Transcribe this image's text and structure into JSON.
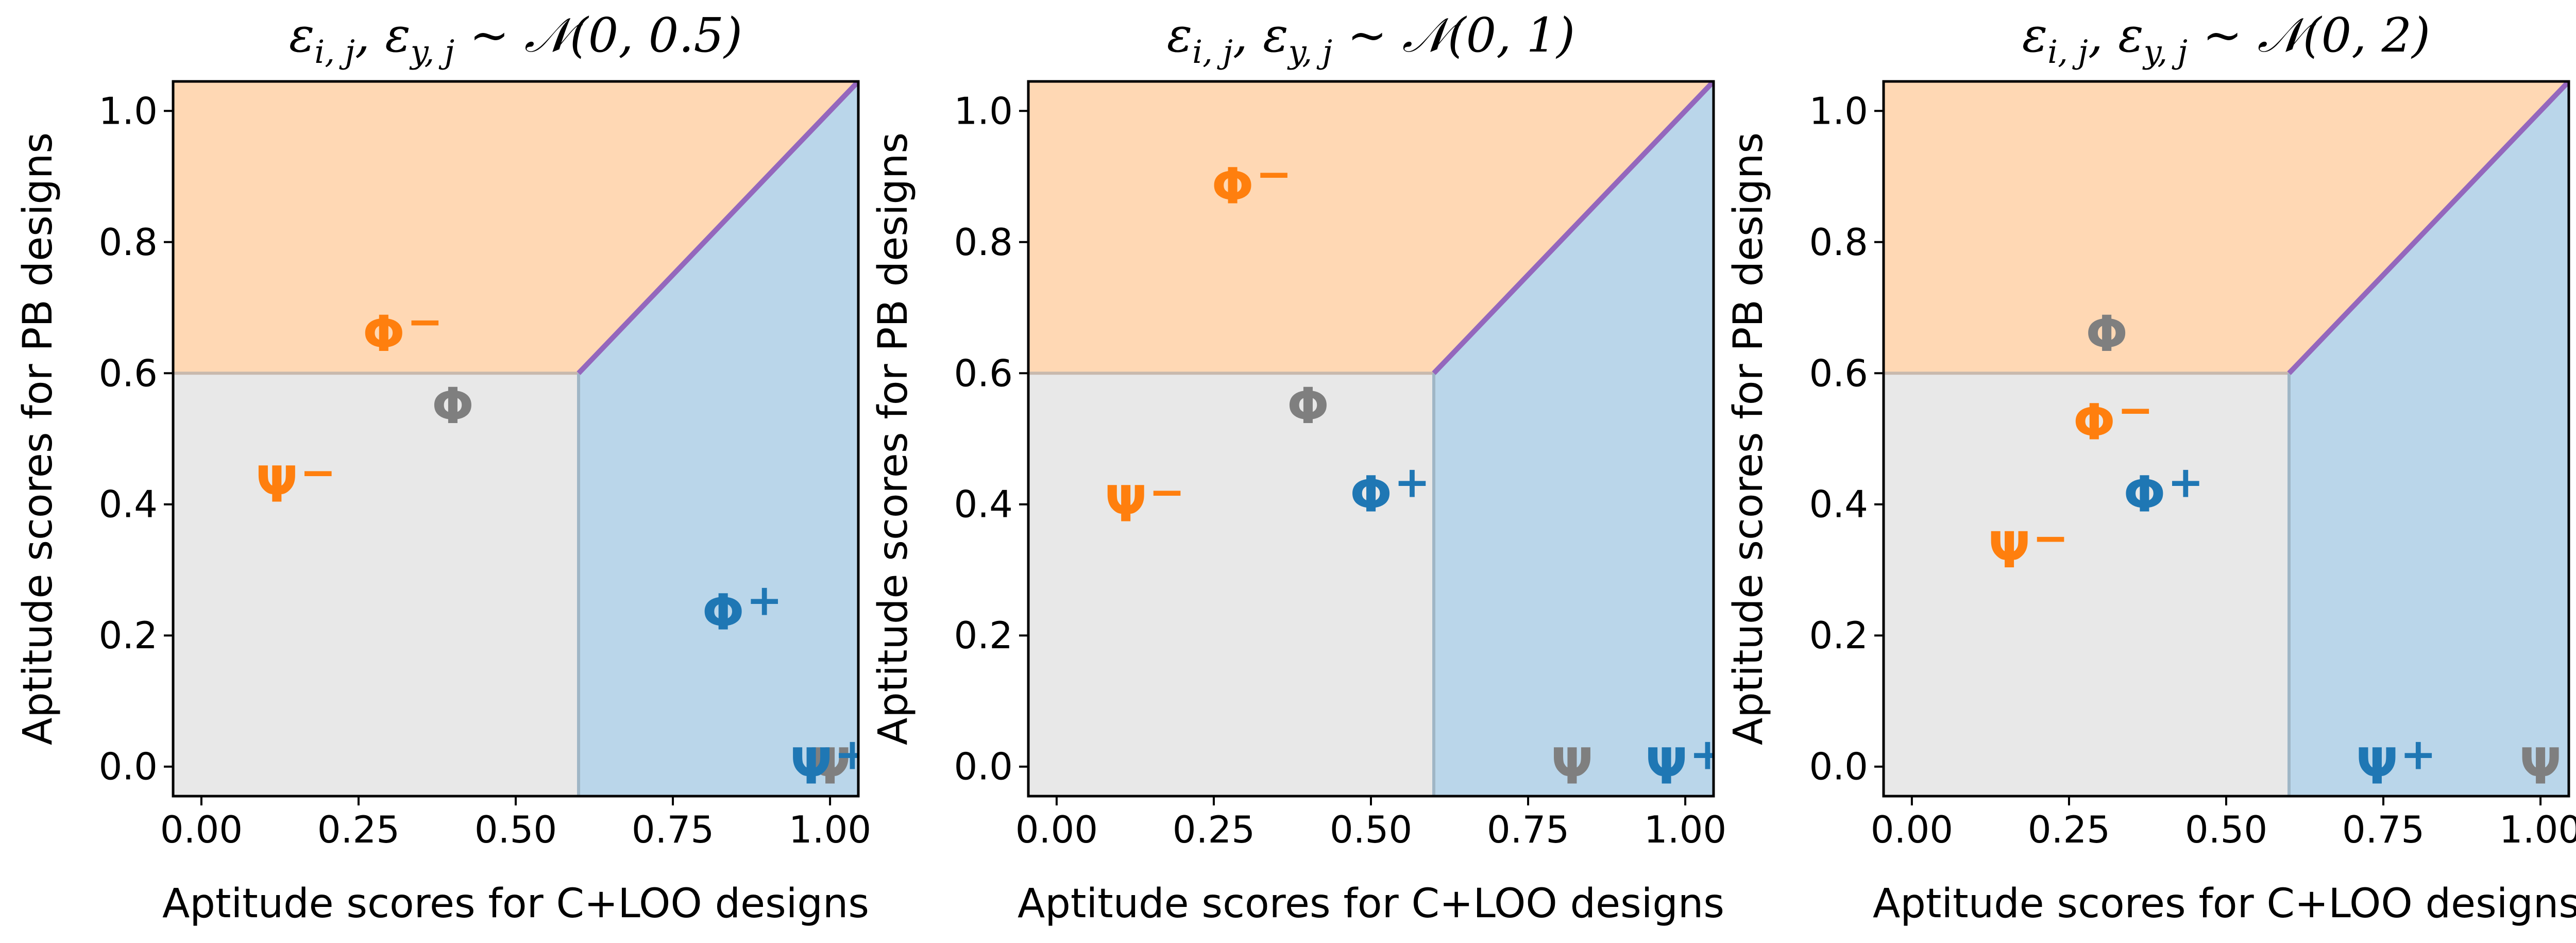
{
  "chart_data": [
    {
      "type": "scatter",
      "title": "ε_{i,j}, ε_{y,j} ~ 𝒩(0, 0.5)",
      "title_parts": {
        "prefix": "ε",
        "sub1": "i, j",
        "mid": ", ε",
        "sub2": "y, j",
        "suffix": " ~ 𝒩(0, 0.5)"
      },
      "xlabel": "Aptitude scores for C+LOO designs",
      "ylabel": "Aptitude scores for PB designs",
      "xlim": [
        -0.045,
        1.045
      ],
      "ylim": [
        -0.045,
        1.045
      ],
      "xticks": [
        0.0,
        0.25,
        0.5,
        0.75,
        1.0
      ],
      "xtick_labels": [
        "0.00",
        "0.25",
        "0.50",
        "0.75",
        "1.00"
      ],
      "yticks": [
        0.0,
        0.2,
        0.4,
        0.6,
        0.8,
        1.0
      ],
      "ytick_labels": [
        "0.0",
        "0.2",
        "0.4",
        "0.6",
        "0.8",
        "1.0"
      ],
      "grid": false,
      "regions": {
        "threshold": 0.6,
        "top_color": "#ffd8b4",
        "right_color": "#bad6ea",
        "low_color": "#e8e8e8",
        "diagonal_color": "#9467bd"
      },
      "points": [
        {
          "symbol": "Φ",
          "sup": "−",
          "x": 0.29,
          "y": 0.66,
          "color": "#ff7f0e"
        },
        {
          "symbol": "Φ",
          "sup": "",
          "x": 0.4,
          "y": 0.55,
          "color": "#7f7f7f"
        },
        {
          "symbol": "Ψ",
          "sup": "−",
          "x": 0.12,
          "y": 0.43,
          "color": "#ff7f0e"
        },
        {
          "symbol": "Φ",
          "sup": "+",
          "x": 0.83,
          "y": 0.235,
          "color": "#1f77b4"
        },
        {
          "symbol": "Ψ",
          "sup": "",
          "x": 1.0,
          "y": 0.0,
          "color": "#7f7f7f"
        },
        {
          "symbol": "Ψ",
          "sup": "+",
          "x": 0.97,
          "y": 0.0,
          "color": "#1f77b4"
        }
      ]
    },
    {
      "type": "scatter",
      "title": "ε_{i,j}, ε_{y,j} ~ 𝒩(0, 1)",
      "title_parts": {
        "prefix": "ε",
        "sub1": "i, j",
        "mid": ", ε",
        "sub2": "y, j",
        "suffix": " ~ 𝒩(0, 1)"
      },
      "xlabel": "Aptitude scores for C+LOO designs",
      "ylabel": "Aptitude scores for PB designs",
      "xlim": [
        -0.045,
        1.045
      ],
      "ylim": [
        -0.045,
        1.045
      ],
      "xticks": [
        0.0,
        0.25,
        0.5,
        0.75,
        1.0
      ],
      "xtick_labels": [
        "0.00",
        "0.25",
        "0.50",
        "0.75",
        "1.00"
      ],
      "yticks": [
        0.0,
        0.2,
        0.4,
        0.6,
        0.8,
        1.0
      ],
      "ytick_labels": [
        "0.0",
        "0.2",
        "0.4",
        "0.6",
        "0.8",
        "1.0"
      ],
      "grid": false,
      "regions": {
        "threshold": 0.6,
        "top_color": "#ffd8b4",
        "right_color": "#bad6ea",
        "low_color": "#e8e8e8",
        "diagonal_color": "#9467bd"
      },
      "points": [
        {
          "symbol": "Φ",
          "sup": "−",
          "x": 0.28,
          "y": 0.885,
          "color": "#ff7f0e"
        },
        {
          "symbol": "Φ",
          "sup": "",
          "x": 0.4,
          "y": 0.55,
          "color": "#7f7f7f"
        },
        {
          "symbol": "Ψ",
          "sup": "−",
          "x": 0.11,
          "y": 0.4,
          "color": "#ff7f0e"
        },
        {
          "symbol": "Φ",
          "sup": "+",
          "x": 0.5,
          "y": 0.415,
          "color": "#1f77b4"
        },
        {
          "symbol": "Ψ",
          "sup": "",
          "x": 0.82,
          "y": 0.0,
          "color": "#7f7f7f"
        },
        {
          "symbol": "Ψ",
          "sup": "+",
          "x": 0.97,
          "y": 0.0,
          "color": "#1f77b4"
        }
      ]
    },
    {
      "type": "scatter",
      "title": "ε_{i,j}, ε_{y,j} ~ 𝒩(0, 2)",
      "title_parts": {
        "prefix": "ε",
        "sub1": "i, j",
        "mid": ", ε",
        "sub2": "y, j",
        "suffix": " ~ 𝒩(0, 2)"
      },
      "xlabel": "Aptitude scores for C+LOO designs",
      "ylabel": "Aptitude scores for PB designs",
      "xlim": [
        -0.045,
        1.045
      ],
      "ylim": [
        -0.045,
        1.045
      ],
      "xticks": [
        0.0,
        0.25,
        0.5,
        0.75,
        1.0
      ],
      "xtick_labels": [
        "0.00",
        "0.25",
        "0.50",
        "0.75",
        "1.00"
      ],
      "yticks": [
        0.0,
        0.2,
        0.4,
        0.6,
        0.8,
        1.0
      ],
      "ytick_labels": [
        "0.0",
        "0.2",
        "0.4",
        "0.6",
        "0.8",
        "1.0"
      ],
      "grid": false,
      "regions": {
        "threshold": 0.6,
        "top_color": "#ffd8b4",
        "right_color": "#bad6ea",
        "low_color": "#e8e8e8",
        "diagonal_color": "#9467bd"
      },
      "points": [
        {
          "symbol": "Φ",
          "sup": "",
          "x": 0.31,
          "y": 0.66,
          "color": "#7f7f7f"
        },
        {
          "symbol": "Φ",
          "sup": "−",
          "x": 0.29,
          "y": 0.525,
          "color": "#ff7f0e"
        },
        {
          "symbol": "Φ",
          "sup": "+",
          "x": 0.37,
          "y": 0.415,
          "color": "#1f77b4"
        },
        {
          "symbol": "Ψ",
          "sup": "−",
          "x": 0.155,
          "y": 0.33,
          "color": "#ff7f0e"
        },
        {
          "symbol": "Ψ",
          "sup": "+",
          "x": 0.74,
          "y": 0.0,
          "color": "#1f77b4"
        },
        {
          "symbol": "Ψ",
          "sup": "",
          "x": 1.0,
          "y": 0.0,
          "color": "#7f7f7f"
        }
      ]
    }
  ]
}
